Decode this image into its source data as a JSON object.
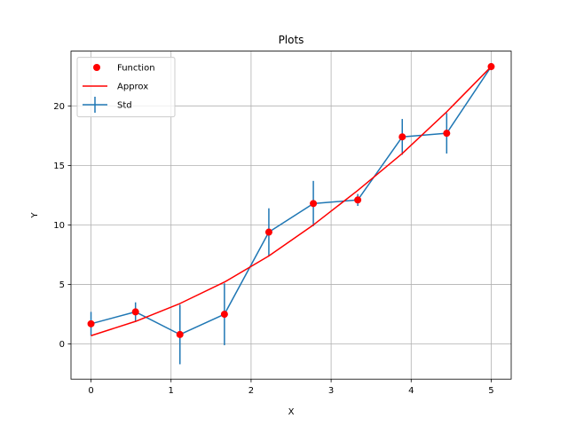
{
  "chart_data": {
    "type": "line",
    "title": "Plots",
    "xlabel": "X",
    "ylabel": "Y",
    "xlim": [
      -0.25,
      5.25
    ],
    "ylim": [
      -2.95,
      24.6
    ],
    "xticks": [
      0,
      1,
      2,
      3,
      4,
      5
    ],
    "yticks": [
      0,
      5,
      10,
      15,
      20
    ],
    "grid": true,
    "legend_position": "top-left",
    "x": [
      0,
      0.556,
      1.111,
      1.667,
      2.222,
      2.778,
      3.333,
      3.889,
      4.444,
      5.0
    ],
    "series": [
      {
        "name": "Function",
        "kind": "points",
        "color": "#ff0000",
        "values": [
          1.7,
          2.7,
          0.8,
          2.5,
          9.4,
          11.8,
          12.1,
          17.4,
          17.7,
          23.3
        ]
      },
      {
        "name": "Approx",
        "kind": "line",
        "color": "#ff0000",
        "values": [
          0.7,
          1.9,
          3.4,
          5.2,
          7.4,
          10.0,
          12.9,
          16.0,
          19.5,
          23.3
        ]
      },
      {
        "name": "Std",
        "kind": "errorbar",
        "color": "#1f77b4",
        "values": [
          1.7,
          2.7,
          0.8,
          2.5,
          9.4,
          11.8,
          12.1,
          17.4,
          17.7,
          23.3
        ],
        "errors": [
          1.0,
          0.8,
          2.5,
          2.6,
          2.0,
          1.9,
          0.5,
          1.5,
          1.7,
          0.3
        ]
      }
    ]
  }
}
